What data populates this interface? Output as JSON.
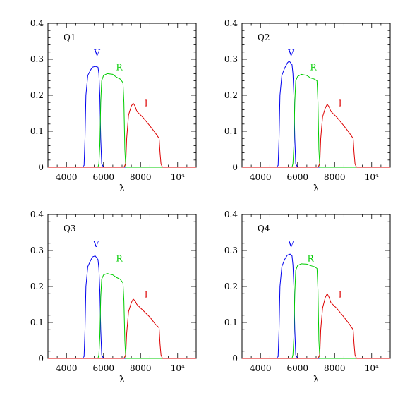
{
  "chart_data": [
    {
      "type": "line",
      "panel_label": "Q1",
      "xlabel": "λ",
      "ylabel": "",
      "xlim": [
        3000,
        11000
      ],
      "ylim": [
        0,
        0.4
      ],
      "x_ticks": [
        {
          "value": 4000,
          "label": "4000"
        },
        {
          "value": 6000,
          "label": "6000"
        },
        {
          "value": 8000,
          "label": "8000"
        },
        {
          "value": 10000,
          "label": "10⁴"
        }
      ],
      "y_ticks": [
        {
          "value": 0,
          "label": "0"
        },
        {
          "value": 0.1,
          "label": "0.1"
        },
        {
          "value": 0.2,
          "label": "0.2"
        },
        {
          "value": 0.3,
          "label": "0.3"
        },
        {
          "value": 0.4,
          "label": "0.4"
        }
      ],
      "series": [
        {
          "name": "V",
          "color": "#0000ee",
          "label_at": [
            5650,
            0.31
          ],
          "x": [
            3000,
            4850,
            4950,
            5000,
            5050,
            5150,
            5300,
            5400,
            5550,
            5700,
            5750,
            5800,
            5850,
            5900,
            6000,
            11000
          ],
          "y": [
            0,
            0,
            0.005,
            0.08,
            0.2,
            0.255,
            0.27,
            0.278,
            0.28,
            0.278,
            0.26,
            0.2,
            0.08,
            0.01,
            0,
            0
          ]
        },
        {
          "name": "R",
          "color": "#00cc00",
          "label_at": [
            6850,
            0.27
          ],
          "x": [
            3000,
            5700,
            5750,
            5800,
            5850,
            5900,
            6000,
            6200,
            6500,
            6700,
            6900,
            7050,
            7100,
            7150,
            7200,
            11000
          ],
          "y": [
            0,
            0,
            0.01,
            0.06,
            0.18,
            0.24,
            0.255,
            0.26,
            0.258,
            0.25,
            0.245,
            0.235,
            0.18,
            0.05,
            0,
            0
          ]
        },
        {
          "name": "I",
          "color": "#dd0000",
          "label_at": [
            8300,
            0.17
          ],
          "x": [
            3000,
            7100,
            7200,
            7250,
            7350,
            7500,
            7600,
            7700,
            7800,
            8100,
            8500,
            8800,
            9000,
            9050,
            9100,
            9150,
            9200,
            11000
          ],
          "y": [
            0,
            0,
            0.01,
            0.08,
            0.145,
            0.17,
            0.178,
            0.17,
            0.155,
            0.14,
            0.115,
            0.095,
            0.08,
            0.04,
            0.01,
            0.003,
            0,
            0
          ]
        }
      ]
    },
    {
      "type": "line",
      "panel_label": "Q2",
      "xlabel": "λ",
      "ylabel": "",
      "xlim": [
        3000,
        11000
      ],
      "ylim": [
        0,
        0.4
      ],
      "x_ticks": [
        {
          "value": 4000,
          "label": "4000"
        },
        {
          "value": 6000,
          "label": "6000"
        },
        {
          "value": 8000,
          "label": "8000"
        },
        {
          "value": 10000,
          "label": "10⁴"
        }
      ],
      "y_ticks": [
        {
          "value": 0,
          "label": "0"
        },
        {
          "value": 0.1,
          "label": "0.1"
        },
        {
          "value": 0.2,
          "label": "0.2"
        },
        {
          "value": 0.3,
          "label": "0.3"
        },
        {
          "value": 0.4,
          "label": "0.4"
        }
      ],
      "series": [
        {
          "name": "V",
          "color": "#0000ee",
          "label_at": [
            5650,
            0.31
          ],
          "x": [
            3000,
            4850,
            4950,
            5000,
            5050,
            5150,
            5300,
            5450,
            5550,
            5700,
            5750,
            5800,
            5850,
            5900,
            6000,
            11000
          ],
          "y": [
            0,
            0,
            0.005,
            0.08,
            0.2,
            0.255,
            0.275,
            0.29,
            0.295,
            0.285,
            0.26,
            0.2,
            0.08,
            0.01,
            0,
            0
          ]
        },
        {
          "name": "R",
          "color": "#00cc00",
          "label_at": [
            6850,
            0.27
          ],
          "x": [
            3000,
            5700,
            5750,
            5800,
            5850,
            5900,
            6000,
            6200,
            6500,
            6700,
            6900,
            7050,
            7100,
            7150,
            7200,
            11000
          ],
          "y": [
            0,
            0,
            0.01,
            0.06,
            0.18,
            0.24,
            0.252,
            0.258,
            0.255,
            0.248,
            0.245,
            0.24,
            0.18,
            0.05,
            0,
            0
          ]
        },
        {
          "name": "I",
          "color": "#dd0000",
          "label_at": [
            8300,
            0.17
          ],
          "x": [
            3000,
            7100,
            7200,
            7250,
            7350,
            7500,
            7600,
            7700,
            7800,
            8100,
            8500,
            8800,
            9000,
            9050,
            9100,
            9150,
            9200,
            11000
          ],
          "y": [
            0,
            0,
            0.01,
            0.08,
            0.14,
            0.165,
            0.175,
            0.168,
            0.155,
            0.14,
            0.115,
            0.095,
            0.08,
            0.04,
            0.01,
            0.003,
            0,
            0
          ]
        }
      ]
    },
    {
      "type": "line",
      "panel_label": "Q3",
      "xlabel": "λ",
      "ylabel": "",
      "xlim": [
        3000,
        11000
      ],
      "ylim": [
        0,
        0.4
      ],
      "x_ticks": [
        {
          "value": 4000,
          "label": "4000"
        },
        {
          "value": 6000,
          "label": "6000"
        },
        {
          "value": 8000,
          "label": "8000"
        },
        {
          "value": 10000,
          "label": "10⁴"
        }
      ],
      "y_ticks": [
        {
          "value": 0,
          "label": "0"
        },
        {
          "value": 0.1,
          "label": "0.1"
        },
        {
          "value": 0.2,
          "label": "0.2"
        },
        {
          "value": 0.3,
          "label": "0.3"
        },
        {
          "value": 0.4,
          "label": "0.4"
        }
      ],
      "series": [
        {
          "name": "V",
          "color": "#0000ee",
          "label_at": [
            5600,
            0.31
          ],
          "x": [
            3000,
            4850,
            4950,
            5000,
            5050,
            5150,
            5300,
            5400,
            5550,
            5700,
            5750,
            5800,
            5850,
            5900,
            6000,
            11000
          ],
          "y": [
            0,
            0,
            0.005,
            0.08,
            0.2,
            0.255,
            0.272,
            0.282,
            0.285,
            0.275,
            0.25,
            0.19,
            0.08,
            0.01,
            0,
            0
          ]
        },
        {
          "name": "R",
          "color": "#00cc00",
          "label_at": [
            6850,
            0.27
          ],
          "x": [
            3000,
            5700,
            5750,
            5800,
            5850,
            5900,
            6000,
            6200,
            6500,
            6700,
            6900,
            7050,
            7100,
            7150,
            7200,
            11000
          ],
          "y": [
            0,
            0,
            0.01,
            0.06,
            0.17,
            0.22,
            0.232,
            0.236,
            0.232,
            0.225,
            0.22,
            0.21,
            0.16,
            0.05,
            0,
            0
          ]
        },
        {
          "name": "I",
          "color": "#dd0000",
          "label_at": [
            8300,
            0.17
          ],
          "x": [
            3000,
            7100,
            7200,
            7250,
            7350,
            7500,
            7600,
            7700,
            7800,
            8100,
            8500,
            8800,
            9000,
            9050,
            9100,
            9150,
            9200,
            11000
          ],
          "y": [
            0,
            0,
            0.01,
            0.07,
            0.13,
            0.155,
            0.165,
            0.16,
            0.15,
            0.135,
            0.115,
            0.095,
            0.085,
            0.04,
            0.01,
            0.003,
            0,
            0
          ]
        }
      ]
    },
    {
      "type": "line",
      "panel_label": "Q4",
      "xlabel": "λ",
      "ylabel": "",
      "xlim": [
        3000,
        11000
      ],
      "ylim": [
        0,
        0.4
      ],
      "x_ticks": [
        {
          "value": 4000,
          "label": "4000"
        },
        {
          "value": 6000,
          "label": "6000"
        },
        {
          "value": 8000,
          "label": "8000"
        },
        {
          "value": 10000,
          "label": "10⁴"
        }
      ],
      "y_ticks": [
        {
          "value": 0,
          "label": "0"
        },
        {
          "value": 0.1,
          "label": "0.1"
        },
        {
          "value": 0.2,
          "label": "0.2"
        },
        {
          "value": 0.3,
          "label": "0.3"
        },
        {
          "value": 0.4,
          "label": "0.4"
        }
      ],
      "series": [
        {
          "name": "V",
          "color": "#0000ee",
          "label_at": [
            5650,
            0.31
          ],
          "x": [
            3000,
            4850,
            4950,
            5000,
            5050,
            5150,
            5300,
            5450,
            5600,
            5700,
            5750,
            5800,
            5850,
            5900,
            6000,
            11000
          ],
          "y": [
            0,
            0,
            0.005,
            0.08,
            0.2,
            0.255,
            0.275,
            0.287,
            0.29,
            0.285,
            0.26,
            0.2,
            0.08,
            0.01,
            0,
            0
          ]
        },
        {
          "name": "R",
          "color": "#00cc00",
          "label_at": [
            6700,
            0.27
          ],
          "x": [
            3000,
            5700,
            5750,
            5800,
            5850,
            5900,
            6000,
            6200,
            6500,
            6700,
            6900,
            7050,
            7100,
            7150,
            7200,
            11000
          ],
          "y": [
            0,
            0,
            0.01,
            0.06,
            0.18,
            0.245,
            0.258,
            0.263,
            0.262,
            0.258,
            0.255,
            0.25,
            0.19,
            0.05,
            0,
            0
          ]
        },
        {
          "name": "I",
          "color": "#dd0000",
          "label_at": [
            8300,
            0.17
          ],
          "x": [
            3000,
            7100,
            7200,
            7250,
            7350,
            7500,
            7600,
            7700,
            7800,
            8100,
            8500,
            8800,
            9000,
            9050,
            9100,
            9150,
            9200,
            11000
          ],
          "y": [
            0,
            0,
            0.01,
            0.08,
            0.14,
            0.17,
            0.18,
            0.17,
            0.155,
            0.14,
            0.115,
            0.095,
            0.08,
            0.04,
            0.01,
            0.003,
            0,
            0
          ]
        }
      ]
    }
  ]
}
